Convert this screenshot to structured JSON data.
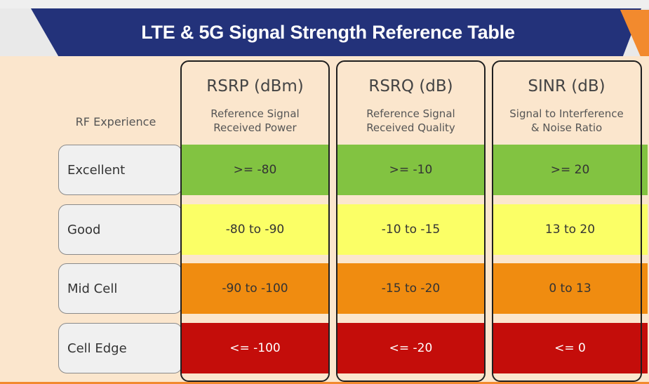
{
  "title": "LTE & 5G Signal Strength Reference Table",
  "header": {
    "rf_experience": "RF Experience",
    "columns": [
      {
        "metric": "RSRP (dBm)",
        "desc_line1": "Reference Signal",
        "desc_line2": "Received Power"
      },
      {
        "metric": "RSRQ (dB)",
        "desc_line1": "Reference Signal",
        "desc_line2": "Received Quality"
      },
      {
        "metric": "SINR (dB)",
        "desc_line1": "Signal to Interference",
        "desc_line2": "& Noise Ratio"
      }
    ]
  },
  "rows": [
    {
      "label": "Excellent",
      "values": [
        ">= -80",
        ">= -10",
        ">= 20"
      ]
    },
    {
      "label": "Good",
      "values": [
        "-80 to -90",
        "-10 to -15",
        "13 to 20"
      ]
    },
    {
      "label": "Mid Cell",
      "values": [
        "-90 to -100",
        "-15 to -20",
        "0 to 13"
      ]
    },
    {
      "label": "Cell Edge",
      "values": [
        "<= -100",
        "<= -20",
        "<= 0"
      ]
    }
  ],
  "colors": {
    "banner": "#23327a",
    "accent": "#f28a2e",
    "panel": "#fbe6cd",
    "excellent": "#82c341",
    "good": "#fbff66",
    "mid_cell": "#f08c10",
    "cell_edge": "#c40d0a"
  }
}
